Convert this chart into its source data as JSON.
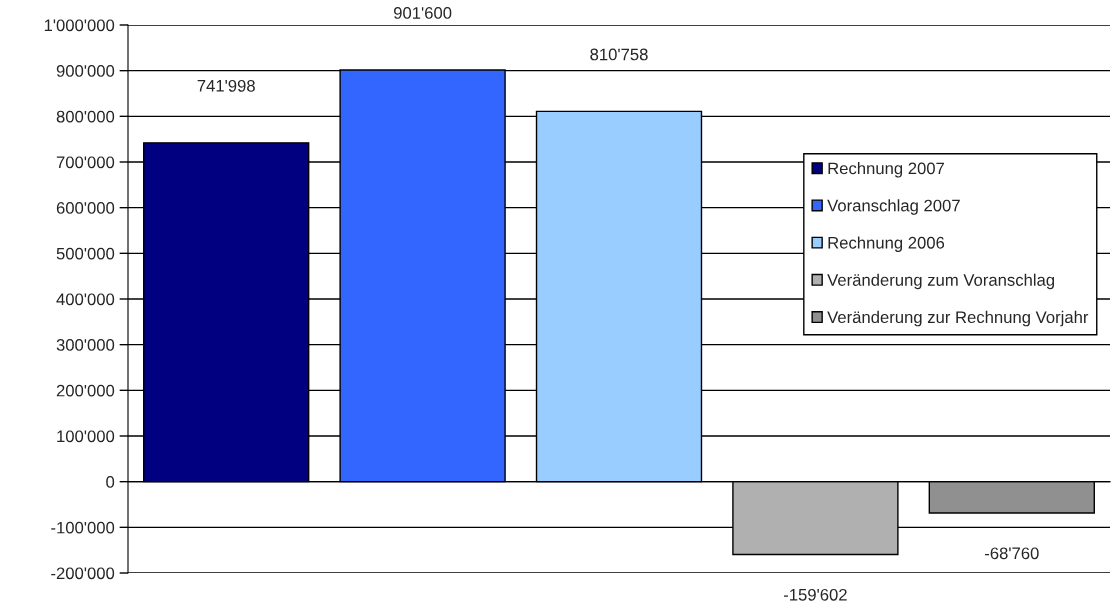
{
  "chart_data": {
    "type": "bar",
    "categories": [
      null,
      null,
      null,
      null,
      null
    ],
    "series": [
      {
        "name": "Rechnung 2007",
        "color": "#000080",
        "values": [
          741998,
          null,
          null,
          null,
          null
        ],
        "value_labels": [
          "741'998",
          null,
          null,
          null,
          null
        ]
      },
      {
        "name": "Voranschlag 2007",
        "color": "#3366ff",
        "values": [
          null,
          901600,
          null,
          null,
          null
        ],
        "value_labels": [
          null,
          "901'600",
          null,
          null,
          null
        ]
      },
      {
        "name": "Rechnung 2006",
        "color": "#99ccff",
        "values": [
          null,
          null,
          810758,
          null,
          null
        ],
        "value_labels": [
          null,
          null,
          "810'758",
          null,
          null
        ]
      },
      {
        "name": "Veränderung zum Voranschlag",
        "color": "#b0b0b0",
        "values": [
          null,
          null,
          null,
          -159602,
          null
        ],
        "value_labels": [
          null,
          null,
          null,
          "-159'602",
          null
        ]
      },
      {
        "name": "Veränderung zur Rechnung Vorjahr",
        "color": "#909090",
        "values": [
          null,
          null,
          null,
          null,
          -68760
        ],
        "value_labels": [
          null,
          null,
          null,
          null,
          "-68'760"
        ]
      }
    ],
    "ylim": [
      -200000,
      1000000
    ],
    "yticks": [
      {
        "value": -200000,
        "label": "-200'000"
      },
      {
        "value": -100000,
        "label": "-100'000"
      },
      {
        "value": 0,
        "label": "0"
      },
      {
        "value": 100000,
        "label": "100'000"
      },
      {
        "value": 200000,
        "label": "200'000"
      },
      {
        "value": 300000,
        "label": "300'000"
      },
      {
        "value": 400000,
        "label": "400'000"
      },
      {
        "value": 500000,
        "label": "500'000"
      },
      {
        "value": 600000,
        "label": "600'000"
      },
      {
        "value": 700000,
        "label": "700'000"
      },
      {
        "value": 800000,
        "label": "800'000"
      },
      {
        "value": 900000,
        "label": "900'000"
      },
      {
        "value": 1000000,
        "label": "1'000'000"
      }
    ],
    "grid": "y",
    "legend": "right"
  }
}
